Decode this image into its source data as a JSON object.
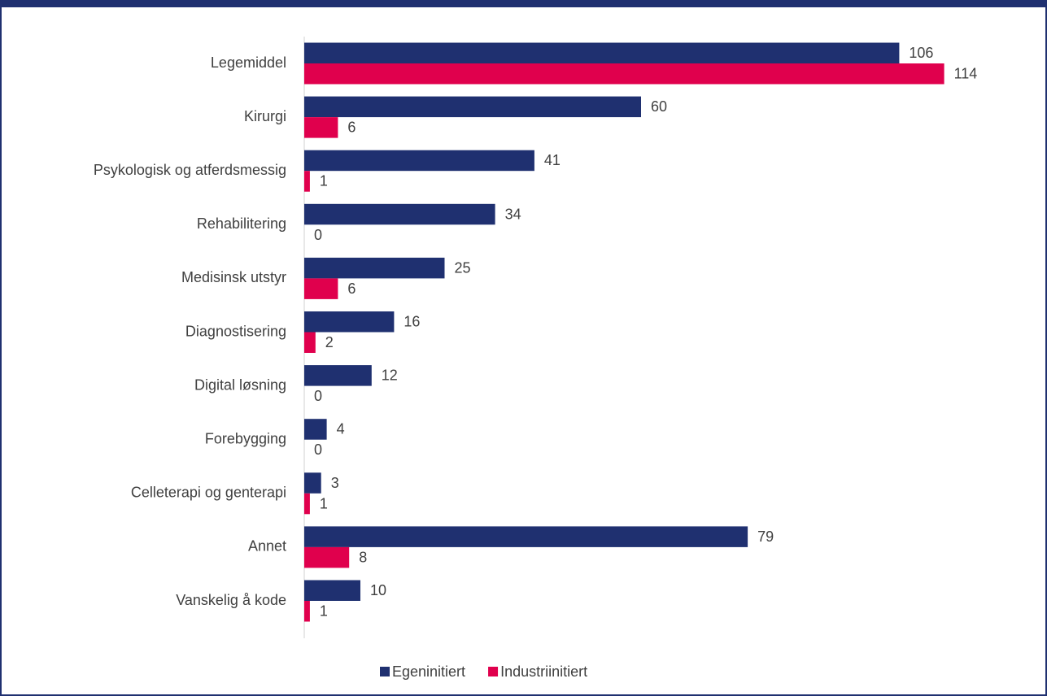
{
  "chart_data": {
    "type": "bar",
    "orientation": "horizontal",
    "categories": [
      "Legemiddel",
      "Kirurgi",
      "Psykologisk og atferdsmessig",
      "Rehabilitering",
      "Medisinsk utstyr",
      "Diagnostisering",
      "Digital løsning",
      "Forebygging",
      "Celleterapi og genterapi",
      "Annet",
      "Vanskelig å kode"
    ],
    "series": [
      {
        "name": "Egeninitiert",
        "color": "#1f3070",
        "values": [
          106,
          60,
          41,
          34,
          25,
          16,
          12,
          4,
          3,
          79,
          10
        ]
      },
      {
        "name": "Industriinitiert",
        "color": "#e0004d",
        "values": [
          114,
          6,
          1,
          0,
          6,
          2,
          0,
          0,
          1,
          8,
          1
        ]
      }
    ],
    "xlim": [
      0,
      130
    ],
    "legend": "bottom"
  }
}
